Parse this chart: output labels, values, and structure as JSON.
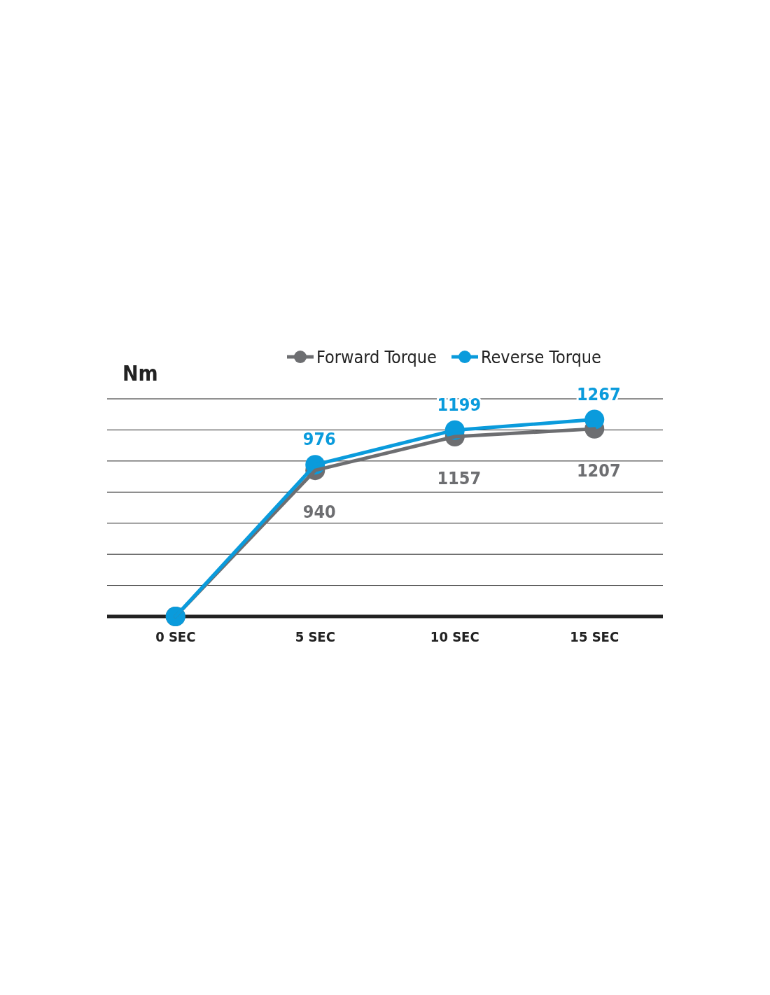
{
  "chart_data": {
    "type": "line",
    "ylabel": "Nm",
    "categories": [
      "0 SEC",
      "5 SEC",
      "10 SEC",
      "15 SEC"
    ],
    "series": [
      {
        "name": "Forward Torque",
        "color": "#6d6e71",
        "values": [
          0,
          940,
          1157,
          1207
        ],
        "value_labels": [
          null,
          "940",
          "1157",
          "1207"
        ]
      },
      {
        "name": "Reverse Torque",
        "color": "#0a9bdc",
        "values": [
          0,
          976,
          1199,
          1267
        ],
        "value_labels": [
          null,
          "976",
          "1199",
          "1267"
        ]
      }
    ],
    "ylim": [
      0,
      1400
    ],
    "yticks": [
      {
        "value": 0,
        "label": null
      },
      {
        "value": 200,
        "label": null
      },
      {
        "value": 400,
        "label": null
      },
      {
        "value": 600,
        "label": null
      },
      {
        "value": 800,
        "label": null
      },
      {
        "value": 1000,
        "label": null
      },
      {
        "value": 1200,
        "label": null
      },
      {
        "value": 1400,
        "label": null
      }
    ],
    "tick_labels": "x",
    "grid": "y",
    "legend": "top",
    "marker": "circle",
    "line_style": "solid"
  }
}
